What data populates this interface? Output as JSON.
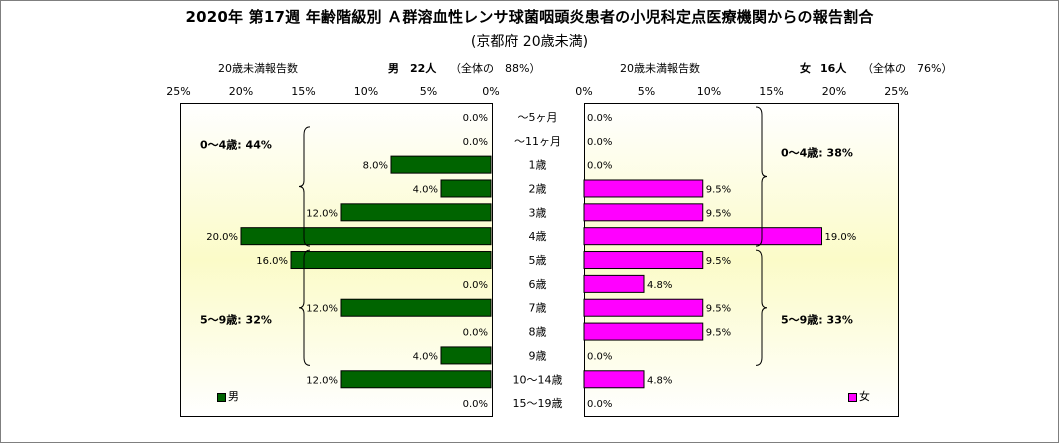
{
  "title": "2020年 第17週 年齢階級別 Ａ群溶血性レンサ球菌咽頭炎患者の小児科定点医療機関からの報告割合",
  "subtitle": "(京都府 20歳未満)",
  "male_header": {
    "label": "20歳未満報告数",
    "sex": "男",
    "count": "22人",
    "share": "（全体の　88%）"
  },
  "female_header": {
    "label": "20歳未満報告数",
    "sex": "女",
    "count": "16人",
    "share": "（全体の　76%）"
  },
  "legend": {
    "male": "男",
    "female": "女"
  },
  "colors": {
    "male": "#006400",
    "female": "#ff00ff",
    "plot_bg_center": "#fbfbc8",
    "plot_bg_edge": "#ffffff"
  },
  "chart_data": {
    "type": "bar",
    "orientation": "horizontal",
    "layout": "population-pyramid",
    "categories": [
      "～5ヶ月",
      "～11ヶ月",
      "1歳",
      "2歳",
      "3歳",
      "4歳",
      "5歳",
      "6歳",
      "7歳",
      "8歳",
      "9歳",
      "10～14歳",
      "15～19歳"
    ],
    "series": [
      {
        "name": "男",
        "values": [
          0.0,
          0.0,
          8.0,
          4.0,
          12.0,
          20.0,
          16.0,
          0.0,
          12.0,
          0.0,
          4.0,
          12.0,
          0.0
        ]
      },
      {
        "name": "女",
        "values": [
          0.0,
          0.0,
          0.0,
          9.5,
          9.5,
          19.0,
          9.5,
          4.8,
          9.5,
          9.5,
          0.0,
          4.8,
          0.0
        ]
      }
    ],
    "xlim": [
      0,
      25
    ],
    "ticks": [
      "0%",
      "5%",
      "10%",
      "15%",
      "20%",
      "25%"
    ],
    "unit": "%",
    "annotations": {
      "male": [
        {
          "text": "0～4歳: 44%"
        },
        {
          "text": "5～9歳: 32%"
        }
      ],
      "female": [
        {
          "text": "0～4歳: 38%"
        },
        {
          "text": "5～9歳: 33%"
        }
      ]
    }
  }
}
